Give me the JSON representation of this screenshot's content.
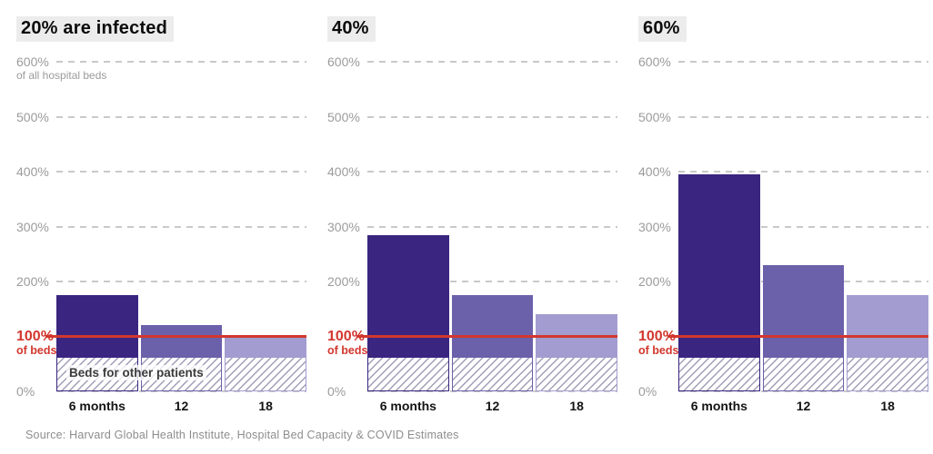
{
  "page": {
    "source": "Source: Harvard Global Health Institute, Hospital Bed Capacity & COVID Estimates"
  },
  "chart_data": {
    "type": "bar",
    "unit": "percent of all hospital beds",
    "ylim": [
      0,
      600
    ],
    "ytick_values": [
      600,
      500,
      400,
      300,
      200,
      100,
      0
    ],
    "ytick_labels": [
      "600%",
      "500%",
      "400%",
      "300%",
      "200%",
      "100%",
      "0%"
    ],
    "ytick_subtitle_600": "of all hospital beds",
    "grid": "dashed horizontal",
    "legend_position": "none",
    "reference_line": {
      "value": 100,
      "label": "100%",
      "sublabel": "of beds",
      "color": "#d2372e"
    },
    "baseline": {
      "value": 63,
      "label": "Beds for other patients"
    },
    "categories": [
      "6 months",
      "12",
      "18"
    ],
    "bar_colors": [
      "#3a2580",
      "#6b60aa",
      "#a29cd0"
    ],
    "panels": [
      {
        "title": "20% are infected",
        "totals": [
          175,
          120,
          100
        ]
      },
      {
        "title": "40%",
        "totals": [
          285,
          175,
          140
        ]
      },
      {
        "title": "60%",
        "totals": [
          395,
          230,
          175
        ]
      }
    ]
  }
}
